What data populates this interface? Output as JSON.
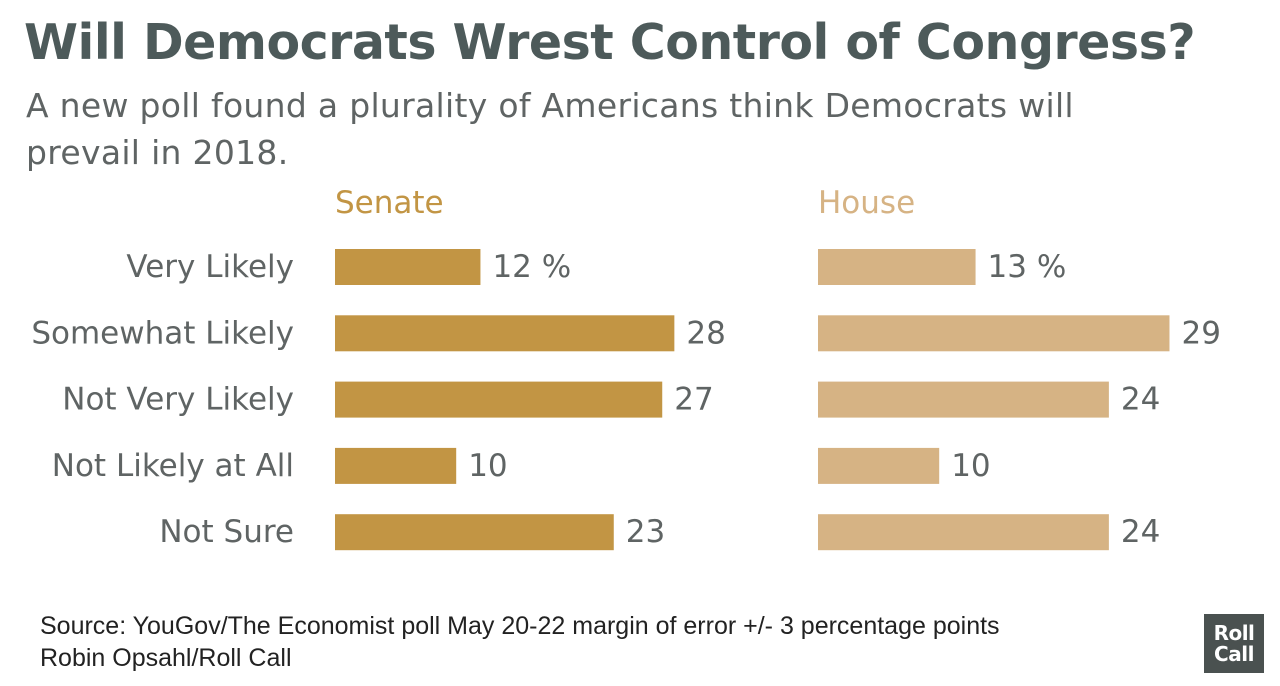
{
  "title": "Will Democrats Wrest Control of Congress?",
  "subtitle": "A new poll found a plurality of Americans think Democrats will prevail in 2018.",
  "source": {
    "line1": "Source: YouGov/The Economist poll May 20-22 margin of error +/- 3 percentage points",
    "line2": "Robin Opsahl/Roll Call"
  },
  "logo": {
    "line1": "Roll",
    "line2": "Call"
  },
  "chart_data": {
    "type": "bar",
    "orientation": "horizontal",
    "categories": [
      "Very Likely",
      "Somewhat Likely",
      "Not Very Likely",
      "Not Likely at All",
      "Not Sure"
    ],
    "series": [
      {
        "name": "Senate",
        "values": [
          12,
          28,
          27,
          10,
          23
        ],
        "color": "#c29544",
        "labels": [
          "12 %",
          "28",
          "27",
          "10",
          "23"
        ]
      },
      {
        "name": "House",
        "values": [
          13,
          29,
          24,
          10,
          24
        ],
        "color": "#d6b384",
        "labels": [
          "13 %",
          "29",
          "24",
          "10",
          "24"
        ]
      }
    ],
    "grid": false
  }
}
